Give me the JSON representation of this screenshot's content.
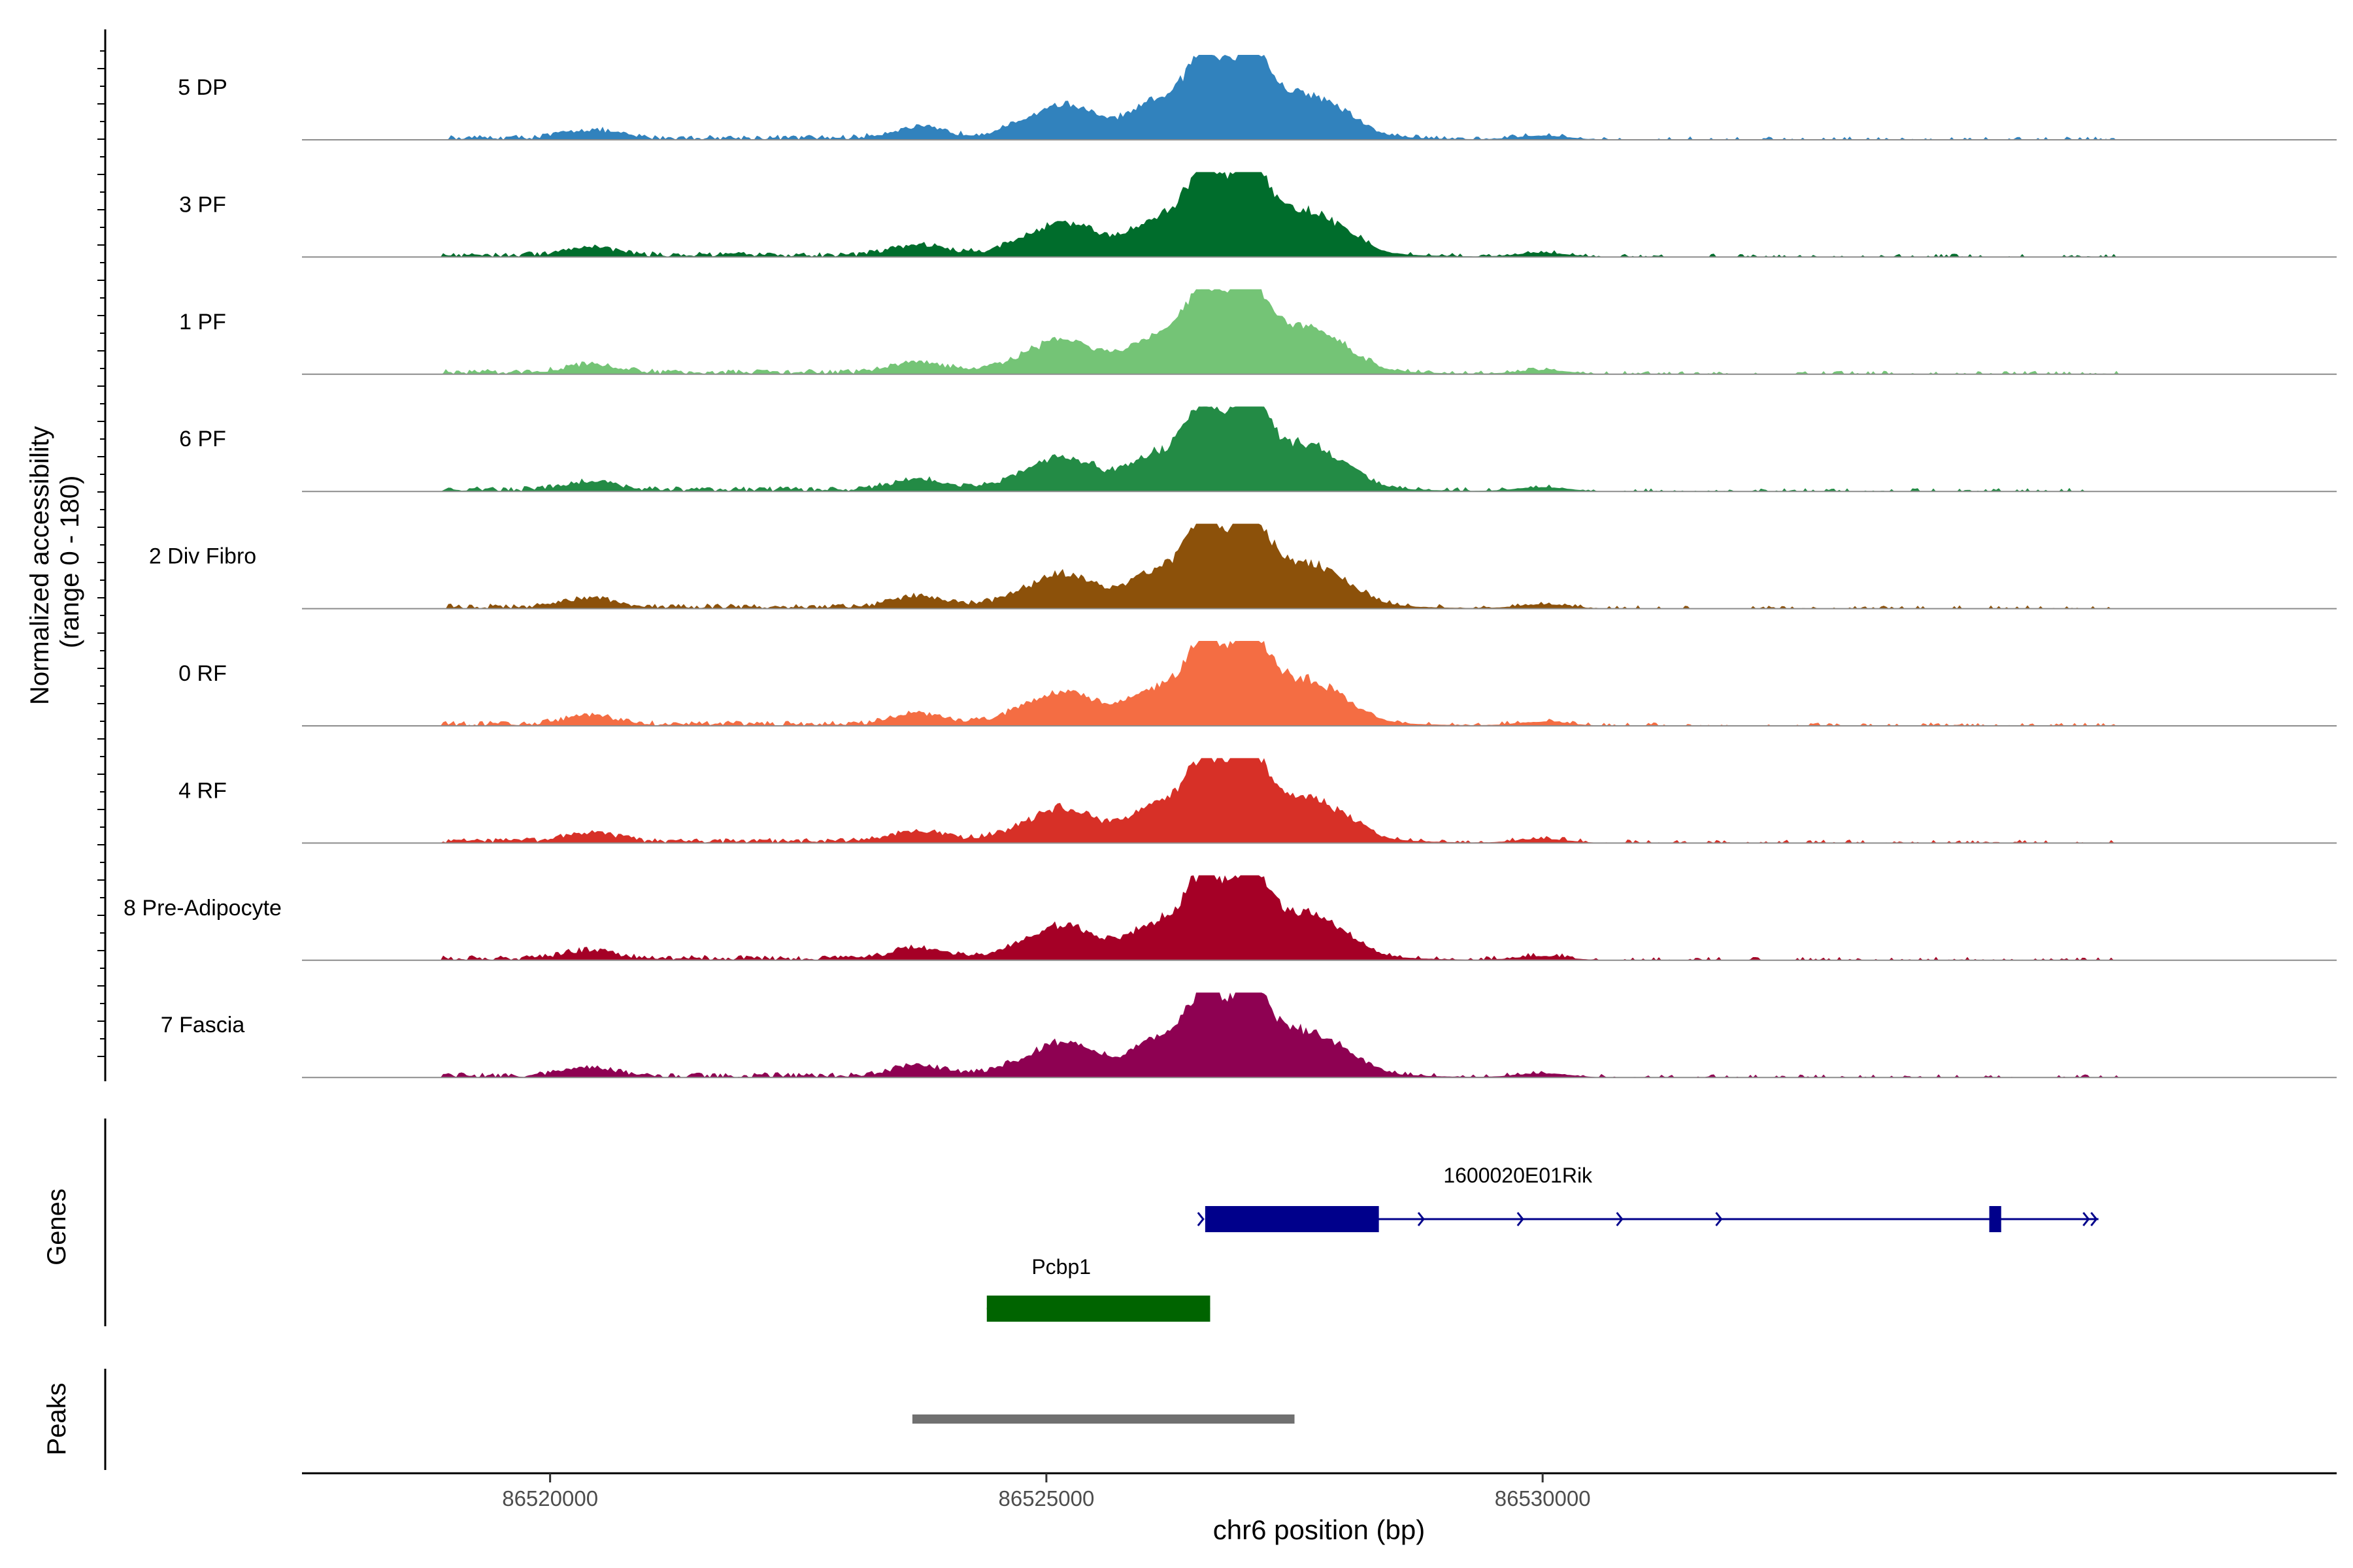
{
  "chart_data": {
    "type": "area",
    "title": "",
    "ylabel": [
      "Normalized accessibility",
      "(range 0 - 180)"
    ],
    "xlabel": "chr6 position (bp)",
    "xlim": [
      86517500,
      86538000
    ],
    "x_ticks": [
      86520000,
      86525000,
      86530000
    ],
    "y_range": [
      0,
      180
    ],
    "tracks": [
      {
        "name": "5 DP",
        "color": "#3182bd"
      },
      {
        "name": "3 PF",
        "color": "#006d2c"
      },
      {
        "name": "1 PF",
        "color": "#74c476"
      },
      {
        "name": "6 PF",
        "color": "#238b45"
      },
      {
        "name": "2 Div Fibro",
        "color": "#8c510a"
      },
      {
        "name": "0 RF",
        "color": "#f46d43"
      },
      {
        "name": "4 RF",
        "color": "#d73027"
      },
      {
        "name": "8 Pre-Adipocyte",
        "color": "#a50026"
      },
      {
        "name": "7 Fascia",
        "color": "#8e0152"
      }
    ],
    "peak_positions": [
      {
        "pos": 86520400,
        "height": 0.1
      },
      {
        "pos": 86523700,
        "height": 0.12
      },
      {
        "pos": 86524800,
        "height": 0.1
      },
      {
        "pos": 86525200,
        "height": 0.28
      },
      {
        "pos": 86526150,
        "height": 0.28
      },
      {
        "pos": 86526600,
        "height": 0.8
      },
      {
        "pos": 86527050,
        "height": 0.88
      },
      {
        "pos": 86527500,
        "height": 0.34
      },
      {
        "pos": 86527900,
        "height": 0.22
      },
      {
        "pos": 86530000,
        "height": 0.05
      }
    ],
    "genes_label": "Genes",
    "genes": [
      {
        "name": "1600020E01Rik",
        "color": "#00008b",
        "strand": "+",
        "start": 86526600,
        "end": 86535600,
        "exons": [
          [
            86526600,
            86528350
          ],
          [
            86534500,
            86534620
          ]
        ],
        "arrow_positions": [
          86526580,
          86528800,
          86529800,
          86530800,
          86531800,
          86535500
        ]
      },
      {
        "name": "Pcbp1",
        "color": "#006400",
        "strand": "+",
        "start": 86524400,
        "end": 86526650,
        "exons": [
          [
            86524400,
            86526650
          ]
        ],
        "arrow_positions": []
      }
    ],
    "peaks_label": "Peaks",
    "peaks": [
      {
        "start": 86523650,
        "end": 86527500,
        "color": "#707070"
      }
    ]
  }
}
